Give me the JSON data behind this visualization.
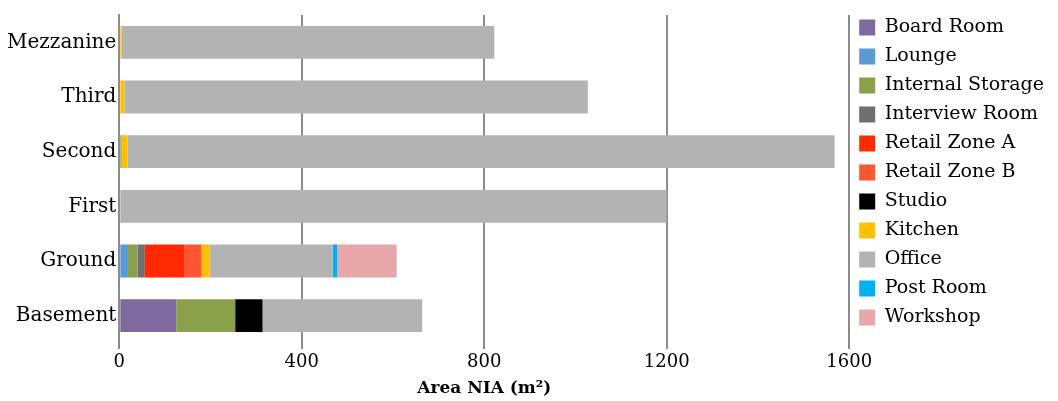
{
  "chart_data": {
    "type": "bar",
    "orientation": "horizontal",
    "stacked": true,
    "xlabel": "Area NIA (m²)",
    "categories": [
      "Mezzanine",
      "Third",
      "Second",
      "First",
      "Ground",
      "Basement"
    ],
    "xlim": [
      0,
      1600
    ],
    "xticks": [
      0,
      400,
      800,
      1200,
      1600
    ],
    "grid": "x",
    "legend": "right",
    "series": [
      {
        "name": "Board Room",
        "color": "#7f6a9e",
        "values": [
          null,
          null,
          null,
          null,
          null,
          125
        ]
      },
      {
        "name": "Lounge",
        "color": "#5b9bd5",
        "values": [
          null,
          null,
          null,
          null,
          19,
          null
        ]
      },
      {
        "name": "Internal Storage",
        "color": "#8aa04a",
        "values": [
          null,
          null,
          5,
          null,
          21,
          129
        ]
      },
      {
        "name": "Interview Room",
        "color": "#707070",
        "values": [
          null,
          null,
          null,
          null,
          16,
          null
        ]
      },
      {
        "name": "Retail Zone A",
        "color": "#ff2a00",
        "values": [
          null,
          null,
          null,
          null,
          86,
          null
        ]
      },
      {
        "name": "Retail Zone B",
        "color": "#ff5533",
        "values": [
          null,
          null,
          null,
          null,
          38,
          null
        ]
      },
      {
        "name": "Studio",
        "color": "#000000",
        "values": [
          null,
          null,
          null,
          null,
          null,
          60
        ]
      },
      {
        "name": "Kitchen",
        "color": "#ffc000",
        "values": [
          5,
          11,
          13,
          null,
          18,
          null
        ]
      },
      {
        "name": "Office",
        "color": "#b3b3b3",
        "values": [
          817,
          1016,
          1550,
          1200,
          270,
          350
        ]
      },
      {
        "name": "Post Room",
        "color": "#00b0f0",
        "values": [
          null,
          null,
          null,
          null,
          10,
          null
        ]
      },
      {
        "name": "Workshop",
        "color": "#e6a8a8",
        "values": [
          null,
          null,
          null,
          null,
          130,
          null
        ]
      }
    ]
  }
}
